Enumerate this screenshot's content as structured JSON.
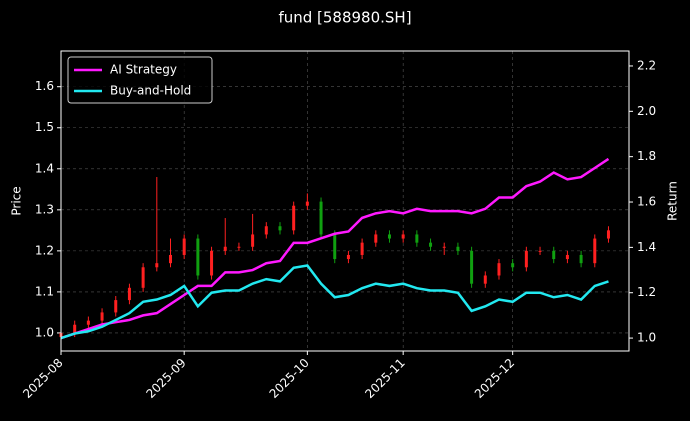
{
  "chart_data": {
    "type": "candlestick",
    "title": "fund [588980.SH]",
    "y_label": "Price",
    "y2_label": "Return",
    "categories": [
      "2025-08",
      null,
      null,
      null,
      null,
      null,
      null,
      null,
      null,
      "2025-09",
      null,
      null,
      null,
      null,
      null,
      null,
      null,
      null,
      "2025-10",
      null,
      null,
      null,
      null,
      null,
      null,
      "2025-11",
      null,
      null,
      null,
      null,
      null,
      null,
      null,
      "2025-12",
      null,
      null,
      null,
      null,
      null,
      null,
      null
    ],
    "open": [
      0.99,
      1.0,
      1.02,
      1.03,
      1.05,
      1.08,
      1.11,
      1.16,
      1.17,
      1.19,
      1.23,
      1.14,
      1.2,
      1.21,
      1.21,
      1.24,
      1.26,
      1.25,
      1.31,
      1.32,
      1.24,
      1.18,
      1.19,
      1.22,
      1.24,
      1.23,
      1.24,
      1.22,
      1.21,
      1.21,
      1.2,
      1.12,
      1.14,
      1.17,
      1.16,
      1.2,
      1.2,
      1.18,
      1.19,
      1.17,
      1.23
    ],
    "high": [
      1.01,
      1.03,
      1.04,
      1.06,
      1.09,
      1.12,
      1.17,
      1.38,
      1.23,
      1.24,
      1.24,
      1.21,
      1.28,
      1.22,
      1.29,
      1.27,
      1.27,
      1.32,
      1.34,
      1.33,
      1.25,
      1.2,
      1.23,
      1.25,
      1.25,
      1.25,
      1.25,
      1.23,
      1.22,
      1.22,
      1.21,
      1.15,
      1.18,
      1.18,
      1.21,
      1.21,
      1.21,
      1.2,
      1.2,
      1.24,
      1.26
    ],
    "low": [
      0.98,
      0.99,
      1.01,
      1.02,
      1.04,
      1.07,
      1.1,
      1.15,
      1.16,
      1.18,
      1.13,
      1.13,
      1.19,
      1.2,
      1.2,
      1.23,
      1.24,
      1.24,
      1.3,
      1.23,
      1.17,
      1.17,
      1.18,
      1.21,
      1.22,
      1.22,
      1.21,
      1.2,
      1.19,
      1.19,
      1.11,
      1.11,
      1.13,
      1.15,
      1.15,
      1.19,
      1.17,
      1.17,
      1.16,
      1.16,
      1.22
    ],
    "close": [
      1.0,
      1.02,
      1.03,
      1.05,
      1.08,
      1.11,
      1.16,
      1.17,
      1.19,
      1.23,
      1.14,
      1.2,
      1.21,
      1.21,
      1.24,
      1.26,
      1.25,
      1.31,
      1.32,
      1.24,
      1.18,
      1.19,
      1.22,
      1.24,
      1.23,
      1.24,
      1.22,
      1.21,
      1.21,
      1.2,
      1.12,
      1.14,
      1.17,
      1.16,
      1.2,
      1.2,
      1.18,
      1.19,
      1.17,
      1.23,
      1.25
    ],
    "up_color": "#ff2020",
    "down_color": "#10a010",
    "series": [
      {
        "name": "AI Strategy",
        "color": "#ff19ff",
        "axis": "y2",
        "values": [
          1.0,
          1.02,
          1.04,
          1.06,
          1.07,
          1.08,
          1.1,
          1.11,
          1.15,
          1.19,
          1.23,
          1.23,
          1.29,
          1.29,
          1.3,
          1.33,
          1.34,
          1.42,
          1.42,
          1.44,
          1.46,
          1.47,
          1.53,
          1.55,
          1.56,
          1.55,
          1.57,
          1.56,
          1.56,
          1.56,
          1.55,
          1.57,
          1.62,
          1.62,
          1.67,
          1.69,
          1.73,
          1.7,
          1.71,
          1.75,
          1.79
        ]
      },
      {
        "name": "Buy-and-Hold",
        "color": "#22e8f0",
        "axis": "y2",
        "values": [
          1.0,
          1.02,
          1.03,
          1.05,
          1.08,
          1.11,
          1.16,
          1.17,
          1.19,
          1.23,
          1.14,
          1.2,
          1.21,
          1.21,
          1.24,
          1.26,
          1.25,
          1.31,
          1.32,
          1.24,
          1.18,
          1.19,
          1.22,
          1.24,
          1.23,
          1.24,
          1.22,
          1.21,
          1.21,
          1.2,
          1.12,
          1.14,
          1.17,
          1.16,
          1.2,
          1.2,
          1.18,
          1.19,
          1.17,
          1.23,
          1.25
        ]
      }
    ],
    "ylim": [
      0.956,
      1.687
    ],
    "yticks": [
      {
        "value": 1,
        "label": "1.0"
      },
      1.1,
      1.2,
      1.3,
      1.4,
      1.5,
      1.6
    ],
    "y2lim": [
      0.943,
      2.266
    ],
    "y2ticks": [
      {
        "value": 1,
        "label": "1.0"
      },
      1.2,
      1.4,
      1.6,
      1.8,
      {
        "value": 2,
        "label": "2.0"
      },
      2.2
    ],
    "grid": true,
    "legend": "upper left"
  }
}
